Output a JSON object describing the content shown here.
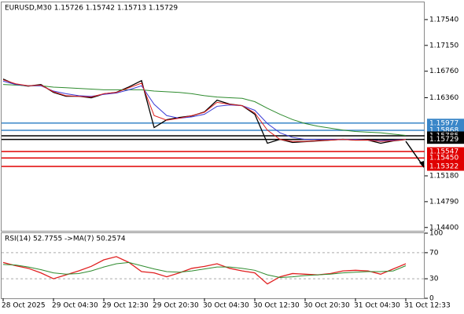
{
  "chart_data": [
    {
      "type": "line",
      "title": "EURUSD,M30 1.15726 1.15742 1.15713 1.15729",
      "categories": [
        "28 Oct 2025",
        null,
        null,
        null,
        "29 Oct 04:30",
        null,
        null,
        null,
        "29 Oct 12:30",
        null,
        null,
        null,
        "29 Oct 20:30",
        null,
        null,
        null,
        "30 Oct 04:30",
        null,
        null,
        null,
        "30 Oct 12:30",
        null,
        null,
        null,
        "30 Oct 20:30",
        null,
        null,
        null,
        "31 Oct 04:30",
        null,
        null,
        null,
        "31 Oct 12:33"
      ],
      "series": [
        {
          "color": "#000000",
          "values": [
            1.16642,
            1.16559,
            1.16535,
            1.16559,
            1.16441,
            1.16382,
            1.16382,
            1.16358,
            1.16417,
            1.16441,
            1.16523,
            1.16618,
            1.15909,
            1.16027,
            1.16062,
            1.16086,
            1.16145,
            1.16322,
            1.16263,
            1.1624,
            1.1611,
            1.15672,
            1.15731,
            1.15684,
            1.15696,
            1.15708,
            1.1572,
            1.15731,
            1.1572,
            1.1572,
            1.15672,
            1.15708,
            1.15729
          ]
        },
        {
          "color": "#2e8b2e",
          "values": [
            1.1656,
            1.1655,
            1.1654,
            1.1654,
            1.1652,
            1.1651,
            1.165,
            1.1649,
            1.1648,
            1.1648,
            1.1648,
            1.1648,
            1.1646,
            1.1645,
            1.1644,
            1.1642,
            1.1639,
            1.1637,
            1.1636,
            1.1635,
            1.163,
            1.162,
            1.1611,
            1.1603,
            1.1597,
            1.1593,
            1.159,
            1.1587,
            1.1585,
            1.1584,
            1.1583,
            1.1581,
            1.1579
          ]
        },
        {
          "color": "#3b3bd6",
          "values": [
            1.1661,
            1.1656,
            1.1654,
            1.1654,
            1.1646,
            1.1642,
            1.1639,
            1.1638,
            1.1641,
            1.1643,
            1.1648,
            1.1654,
            1.1626,
            1.1609,
            1.1605,
            1.1607,
            1.1611,
            1.1623,
            1.1625,
            1.1624,
            1.1617,
            1.1597,
            1.1583,
            1.1576,
            1.1573,
            1.1573,
            1.1573,
            1.1573,
            1.1573,
            1.1572,
            1.1571,
            1.1572,
            1.1573
          ]
        },
        {
          "color": "#e02020",
          "values": [
            1.1663,
            1.1657,
            1.1654,
            1.1655,
            1.1645,
            1.1639,
            1.1638,
            1.1637,
            1.1642,
            1.1644,
            1.1651,
            1.1658,
            1.1609,
            1.1602,
            1.1605,
            1.1609,
            1.1614,
            1.1629,
            1.1626,
            1.1624,
            1.1613,
            1.1587,
            1.1573,
            1.157,
            1.157,
            1.1571,
            1.1572,
            1.1573,
            1.1572,
            1.1572,
            1.157,
            1.1571,
            1.1573
          ]
        }
      ],
      "ylim": [
        1.1435,
        1.178
      ],
      "yticks": [
        {
          "value": 1.1754,
          "label": "1.17540"
        },
        {
          "value": 1.1715,
          "label": "1.17150"
        },
        {
          "value": 1.1676,
          "label": "1.16760"
        },
        {
          "value": 1.1636,
          "label": "1.16360"
        },
        {
          "value": 1.1518,
          "label": "1.15180"
        },
        {
          "value": 1.1479,
          "label": "1.14790"
        },
        {
          "value": 1.144,
          "label": "1.14400"
        }
      ],
      "levels": [
        {
          "value": 1.15977,
          "label": "1.15977",
          "color": "#3a86c8"
        },
        {
          "value": 1.15868,
          "label": "1.15868",
          "color": "#3a86c8"
        },
        {
          "value": 1.15785,
          "label": "1.15785",
          "color": "#000000"
        },
        {
          "value": 1.15729,
          "label": "1.15729",
          "color": "#000000"
        },
        {
          "value": 1.15547,
          "label": "1.15547",
          "color": "#e00000"
        },
        {
          "value": 1.1545,
          "label": "1.15450",
          "color": "#e00000"
        },
        {
          "value": 1.15322,
          "label": "1.15322",
          "color": "#e00000"
        }
      ]
    },
    {
      "type": "line",
      "title": "RSI(14) 52.7755 ->MA(7) 50.2574",
      "series": [
        {
          "color": "#e02020",
          "values": [
            55,
            50,
            46,
            39,
            30,
            36,
            42,
            49,
            59,
            64,
            55,
            41,
            39,
            33,
            39,
            46,
            49,
            53,
            46,
            42,
            39,
            22,
            33,
            38,
            37,
            36,
            38,
            42,
            43,
            42,
            37,
            45,
            53
          ]
        },
        {
          "color": "#2e8b2e",
          "values": [
            52,
            51,
            48,
            44,
            39,
            37,
            38,
            42,
            48,
            53,
            55,
            50,
            45,
            41,
            40,
            42,
            45,
            48,
            48,
            46,
            43,
            36,
            32,
            33,
            35,
            36,
            37,
            39,
            40,
            41,
            41,
            42,
            50
          ]
        }
      ],
      "ylim": [
        0,
        100
      ],
      "yticks": [
        0,
        30,
        70,
        100
      ],
      "dashed_ticks": [
        30,
        70
      ]
    }
  ]
}
